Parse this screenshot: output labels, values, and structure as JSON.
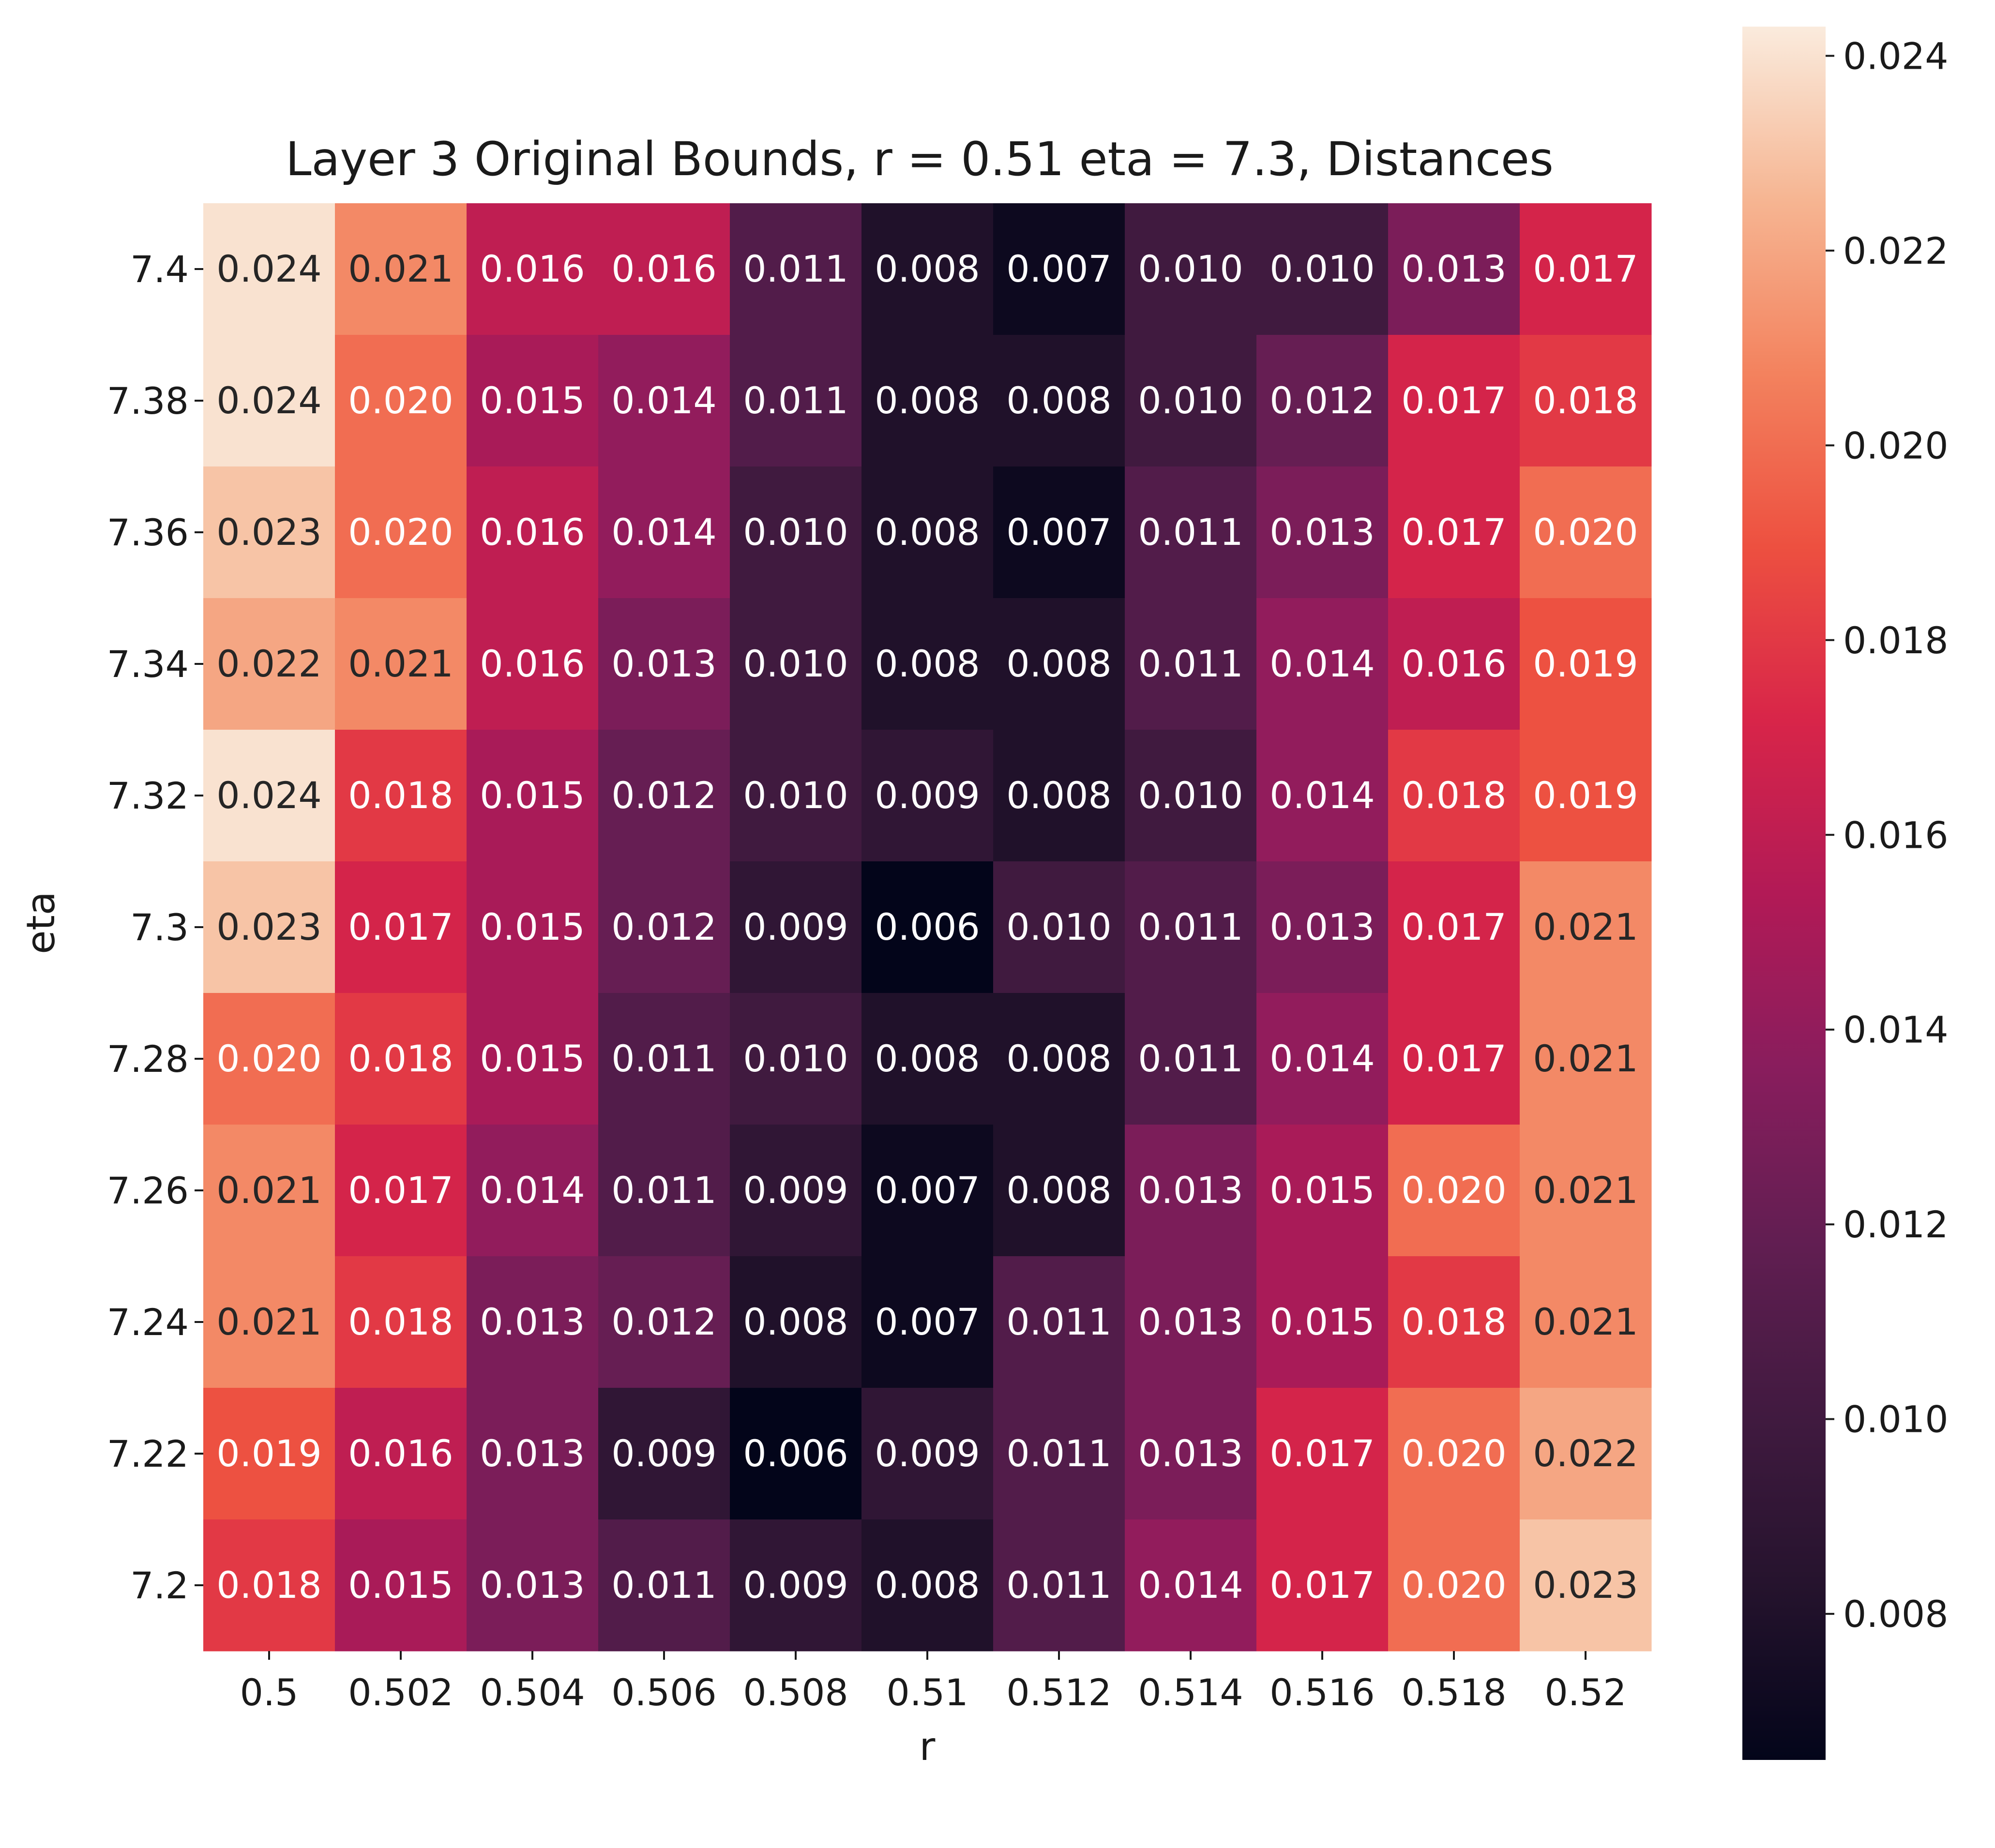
{
  "chart_data": {
    "type": "heatmap",
    "title": "Layer 3 Original Bounds, r = 0.51 eta = 7.3, Distances",
    "xlabel": "r",
    "ylabel": "eta",
    "x": [
      "0.5",
      "0.502",
      "0.504",
      "0.506",
      "0.508",
      "0.51",
      "0.512",
      "0.514",
      "0.516",
      "0.518",
      "0.52"
    ],
    "y": [
      "7.4",
      "7.38",
      "7.36",
      "7.34",
      "7.32",
      "7.3",
      "7.28",
      "7.26",
      "7.24",
      "7.22",
      "7.2"
    ],
    "values": [
      [
        0.024,
        0.021,
        0.016,
        0.016,
        0.011,
        0.008,
        0.007,
        0.01,
        0.01,
        0.013,
        0.017
      ],
      [
        0.024,
        0.02,
        0.015,
        0.014,
        0.011,
        0.008,
        0.008,
        0.01,
        0.012,
        0.017,
        0.018
      ],
      [
        0.023,
        0.02,
        0.016,
        0.014,
        0.01,
        0.008,
        0.007,
        0.011,
        0.013,
        0.017,
        0.02
      ],
      [
        0.022,
        0.021,
        0.016,
        0.013,
        0.01,
        0.008,
        0.008,
        0.011,
        0.014,
        0.016,
        0.019
      ],
      [
        0.024,
        0.018,
        0.015,
        0.012,
        0.01,
        0.009,
        0.008,
        0.01,
        0.014,
        0.018,
        0.019
      ],
      [
        0.023,
        0.017,
        0.015,
        0.012,
        0.009,
        0.006,
        0.01,
        0.011,
        0.013,
        0.017,
        0.021
      ],
      [
        0.02,
        0.018,
        0.015,
        0.011,
        0.01,
        0.008,
        0.008,
        0.011,
        0.014,
        0.017,
        0.021
      ],
      [
        0.021,
        0.017,
        0.014,
        0.011,
        0.009,
        0.007,
        0.008,
        0.013,
        0.015,
        0.02,
        0.021
      ],
      [
        0.021,
        0.018,
        0.013,
        0.012,
        0.008,
        0.007,
        0.011,
        0.013,
        0.015,
        0.018,
        0.021
      ],
      [
        0.019,
        0.016,
        0.013,
        0.009,
        0.006,
        0.009,
        0.011,
        0.013,
        0.017,
        0.02,
        0.022
      ],
      [
        0.018,
        0.015,
        0.013,
        0.011,
        0.009,
        0.008,
        0.011,
        0.014,
        0.017,
        0.02,
        0.023
      ]
    ],
    "colorbar": {
      "range": [
        0.0065,
        0.0243
      ],
      "ticks": [
        "0.008",
        "0.010",
        "0.012",
        "0.014",
        "0.016",
        "0.018",
        "0.020",
        "0.022",
        "0.024"
      ],
      "colormap": "rocket"
    }
  }
}
